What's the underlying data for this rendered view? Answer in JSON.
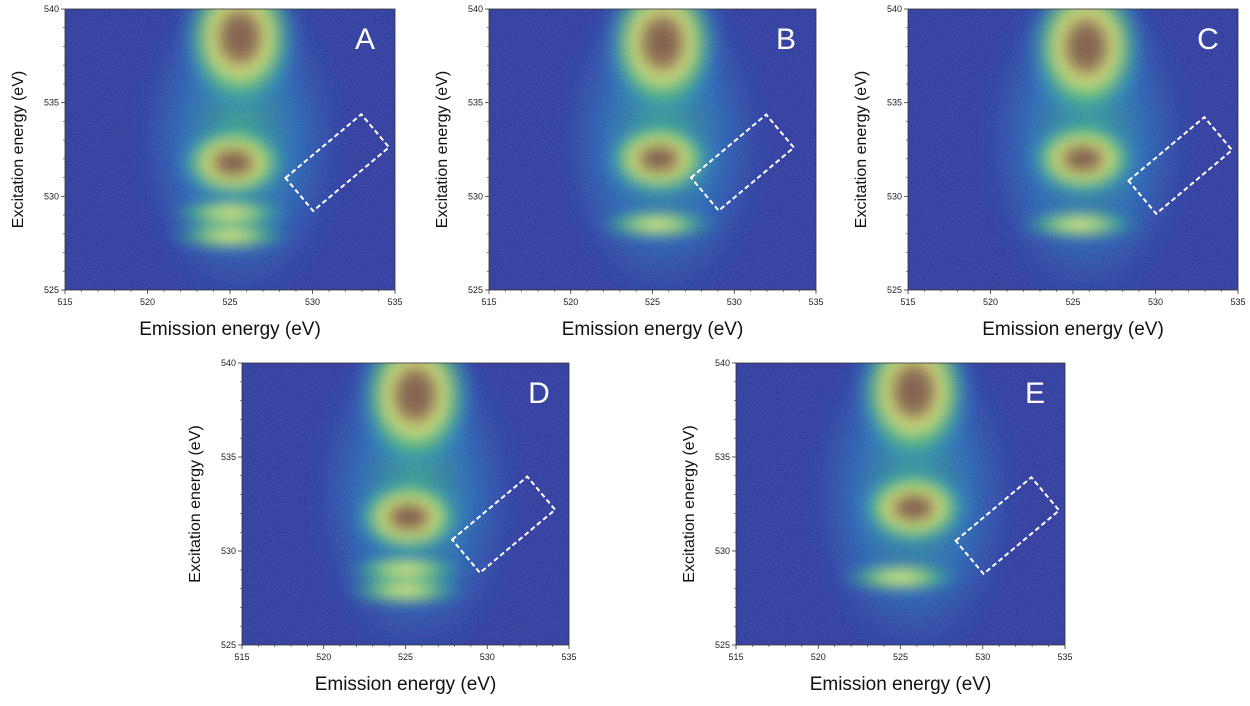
{
  "chart_data": [
    {
      "type": "heatmap",
      "panel_label": "A",
      "xlabel": "Emission energy (eV)",
      "ylabel": "Excitation energy (eV)",
      "xlim": [
        515,
        535
      ],
      "ylim": [
        525,
        540
      ],
      "xticks": [
        "515",
        "520",
        "525",
        "530",
        "535"
      ],
      "yticks": [
        "525",
        "530",
        "535",
        "540"
      ],
      "colormap": "dark blue → cyan → green → yellow → brown (increasing intensity)",
      "features": [
        {
          "center_x": 525.6,
          "center_y": 538.5,
          "intensity": 1.0
        },
        {
          "center_x": 525.2,
          "center_y": 531.8,
          "intensity": 1.0
        },
        {
          "center_x": 525.0,
          "center_y": 529.1,
          "intensity": 0.6
        },
        {
          "center_x": 525.0,
          "center_y": 527.9,
          "intensity": 0.7
        }
      ],
      "highlight_box": {
        "x": [
          529,
          534
        ],
        "y": [
          529.7,
          533.9
        ],
        "style": "dashed white, rotated"
      }
    },
    {
      "type": "heatmap",
      "panel_label": "B",
      "xlabel": "Emission energy (eV)",
      "ylabel": "Excitation energy (eV)",
      "xlim": [
        515,
        535
      ],
      "ylim": [
        525,
        540
      ],
      "xticks": [
        "515",
        "520",
        "525",
        "530",
        "535"
      ],
      "yticks": [
        "525",
        "530",
        "535",
        "540"
      ],
      "colormap": "dark blue → cyan → green → yellow → brown (increasing intensity)",
      "features": [
        {
          "center_x": 525.6,
          "center_y": 538.2,
          "intensity": 1.0
        },
        {
          "center_x": 525.4,
          "center_y": 532.0,
          "intensity": 0.95
        },
        {
          "center_x": 525.3,
          "center_y": 528.5,
          "intensity": 0.8
        }
      ],
      "highlight_box": {
        "x": [
          528,
          533
        ],
        "y": [
          529.7,
          533.9
        ],
        "style": "dashed white, rotated"
      }
    },
    {
      "type": "heatmap",
      "panel_label": "C",
      "xlabel": "Emission energy (eV)",
      "ylabel": "Excitation energy (eV)",
      "xlim": [
        515,
        535
      ],
      "ylim": [
        525,
        540
      ],
      "xticks": [
        "515",
        "520",
        "525",
        "530",
        "535"
      ],
      "yticks": [
        "525",
        "530",
        "535",
        "540"
      ],
      "colormap": "dark blue → cyan → green → yellow → brown (increasing intensity)",
      "features": [
        {
          "center_x": 525.8,
          "center_y": 538.0,
          "intensity": 1.0
        },
        {
          "center_x": 525.6,
          "center_y": 532.0,
          "intensity": 0.95
        },
        {
          "center_x": 525.4,
          "center_y": 528.5,
          "intensity": 0.75
        }
      ],
      "highlight_box": {
        "x": [
          529,
          534
        ],
        "y": [
          529.6,
          533.7
        ],
        "style": "dashed white, rotated"
      }
    },
    {
      "type": "heatmap",
      "panel_label": "D",
      "xlabel": "Emission energy (eV)",
      "ylabel": "Excitation energy (eV)",
      "xlim": [
        515,
        535
      ],
      "ylim": [
        525,
        540
      ],
      "xticks": [
        "515",
        "520",
        "525",
        "530",
        "535"
      ],
      "yticks": [
        "525",
        "530",
        "535",
        "540"
      ],
      "colormap": "dark blue → cyan → green → yellow → brown (increasing intensity)",
      "features": [
        {
          "center_x": 525.6,
          "center_y": 538.3,
          "intensity": 1.0
        },
        {
          "center_x": 525.2,
          "center_y": 531.8,
          "intensity": 1.0
        },
        {
          "center_x": 525.0,
          "center_y": 529.0,
          "intensity": 0.6
        },
        {
          "center_x": 525.0,
          "center_y": 527.9,
          "intensity": 0.7
        }
      ],
      "highlight_box": {
        "x": [
          528.5,
          533.5
        ],
        "y": [
          529.3,
          533.5
        ],
        "style": "dashed white, rotated"
      }
    },
    {
      "type": "heatmap",
      "panel_label": "E",
      "xlabel": "Emission energy (eV)",
      "ylabel": "Excitation energy (eV)",
      "xlim": [
        515,
        535
      ],
      "ylim": [
        525,
        540
      ],
      "xticks": [
        "515",
        "520",
        "525",
        "530",
        "535"
      ],
      "yticks": [
        "525",
        "530",
        "535",
        "540"
      ],
      "colormap": "dark blue → cyan → green → yellow → brown (increasing intensity)",
      "features": [
        {
          "center_x": 525.8,
          "center_y": 538.5,
          "intensity": 1.0
        },
        {
          "center_x": 525.8,
          "center_y": 532.3,
          "intensity": 0.95
        },
        {
          "center_x": 525.0,
          "center_y": 528.6,
          "intensity": 0.8
        }
      ],
      "highlight_box": {
        "x": [
          529,
          534
        ],
        "y": [
          529.2,
          533.5
        ],
        "style": "dashed white, rotated"
      }
    }
  ]
}
